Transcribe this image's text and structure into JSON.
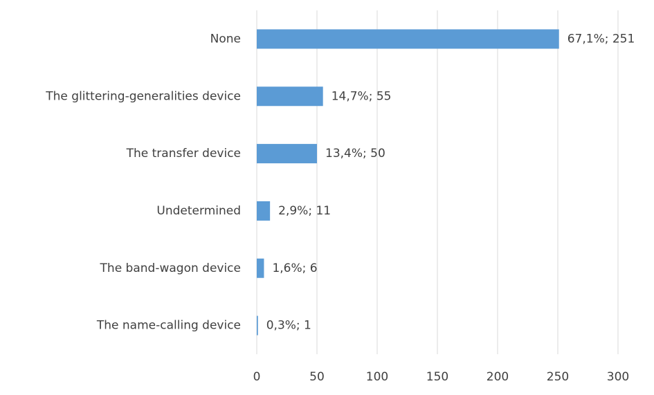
{
  "chart_data": {
    "type": "bar",
    "orientation": "horizontal",
    "categories": [
      "None",
      "The glittering-generalities device",
      "The transfer device",
      "Undetermined",
      "The band-wagon device",
      "The name-calling device"
    ],
    "values": [
      251,
      55,
      50,
      11,
      6,
      1
    ],
    "value_labels": [
      "67,1%; 251",
      "14,7%; 55",
      "13,4%; 50",
      "2,9%; 11",
      "1,6%; 6",
      "0,3%; 1"
    ],
    "color": "#5b9bd5",
    "xlim": [
      0,
      300
    ],
    "xticks": [
      0,
      50,
      100,
      150,
      200,
      250,
      300
    ],
    "grid": true
  }
}
